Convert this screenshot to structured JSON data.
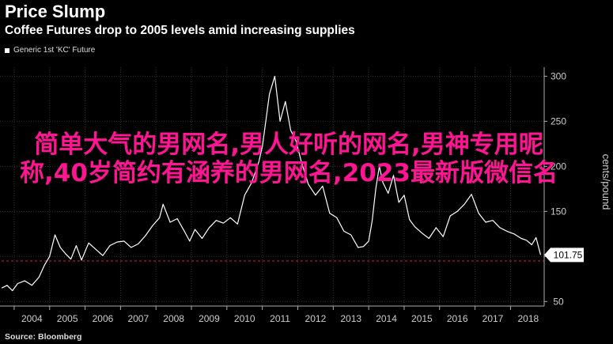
{
  "header": {
    "title": "Price Slump",
    "subtitle": "Coffee Futures drop to 2005 levels amid increasing supplies"
  },
  "source": "Source: Bloomberg",
  "overlay_text": "简单大气的男网名,男人好听的网名,男神专用昵称,40岁简约有涵养的男网名,2023最新版微信名",
  "colors": {
    "background": "#000000",
    "line": "#ffffff",
    "reference_line": "#b0104a",
    "overlay_text": "#ff1493",
    "last_value_box": "#ffffff"
  },
  "chart_data": {
    "type": "line",
    "title": "Price Slump",
    "subtitle": "Coffee Futures drop to 2005 levels amid increasing supplies",
    "ylabel": "cents/pound",
    "xlabel": "",
    "ylim": [
      45,
      310
    ],
    "xlim": [
      2003.6,
      2018.95
    ],
    "y_ticks": [
      50,
      100,
      150,
      200,
      250,
      300
    ],
    "y_tick_labels": [
      "50",
      "100",
      "150",
      "200",
      "250",
      "300"
    ],
    "x_tick_labels": [
      "2004",
      "2005",
      "2006",
      "2007",
      "2008",
      "2009",
      "2010",
      "2011",
      "2012",
      "2013",
      "2014",
      "2015",
      "2016",
      "2017",
      "2018"
    ],
    "grid": true,
    "y_axis_side": "right",
    "legend": "top-left",
    "reference_line": 95,
    "last_value": 101.75,
    "last_value_label": "101.75",
    "series": [
      {
        "name": "Generic 1st 'KC' Future",
        "x": [
          2003.65,
          2003.8,
          2003.95,
          2004.1,
          2004.3,
          2004.5,
          2004.7,
          2004.85,
          2005.0,
          2005.15,
          2005.3,
          2005.45,
          2005.6,
          2005.75,
          2005.9,
          2006.1,
          2006.3,
          2006.5,
          2006.7,
          2006.9,
          2007.1,
          2007.3,
          2007.5,
          2007.7,
          2007.9,
          2008.1,
          2008.2,
          2008.4,
          2008.6,
          2008.8,
          2008.95,
          2009.1,
          2009.3,
          2009.5,
          2009.7,
          2009.9,
          2010.1,
          2010.3,
          2010.5,
          2010.7,
          2010.9,
          2011.0,
          2011.1,
          2011.2,
          2011.35,
          2011.5,
          2011.65,
          2011.8,
          2011.95,
          2012.1,
          2012.3,
          2012.5,
          2012.7,
          2012.9,
          2013.1,
          2013.3,
          2013.5,
          2013.7,
          2013.85,
          2014.0,
          2014.1,
          2014.2,
          2014.3,
          2014.4,
          2014.55,
          2014.7,
          2014.85,
          2015.0,
          2015.15,
          2015.3,
          2015.5,
          2015.7,
          2015.9,
          2016.1,
          2016.3,
          2016.5,
          2016.7,
          2016.9,
          2017.1,
          2017.3,
          2017.5,
          2017.7,
          2017.9,
          2018.1,
          2018.3,
          2018.45,
          2018.6,
          2018.72,
          2018.85
        ],
        "values": [
          65,
          68,
          62,
          70,
          73,
          68,
          77,
          90,
          100,
          124,
          110,
          103,
          97,
          112,
          96,
          115,
          108,
          101,
          112,
          116,
          117,
          110,
          114,
          123,
          134,
          143,
          158,
          138,
          142,
          128,
          117,
          130,
          120,
          132,
          140,
          137,
          143,
          136,
          168,
          182,
          205,
          222,
          251,
          280,
          300,
          250,
          272,
          240,
          228,
          205,
          180,
          168,
          178,
          148,
          143,
          128,
          124,
          110,
          111,
          117,
          140,
          175,
          200,
          182,
          170,
          190,
          160,
          168,
          141,
          133,
          126,
          120,
          132,
          122,
          145,
          150,
          158,
          169,
          148,
          138,
          140,
          132,
          128,
          125,
          120,
          118,
          113,
          121,
          101.75
        ]
      }
    ]
  }
}
